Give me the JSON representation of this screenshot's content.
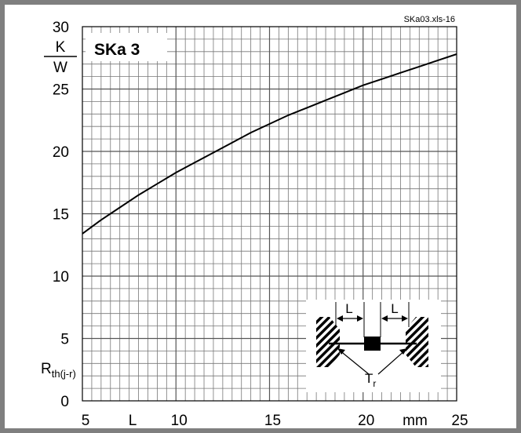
{
  "file_ref": "SKa03.xls-16",
  "chart_data": {
    "type": "line",
    "title": "SKa 3",
    "xlabel": "L",
    "xunit": "mm",
    "ylabel_main": "R",
    "ylabel_sub": "th(j-r)",
    "yunit_num": "K",
    "yunit_den": "W",
    "xlim": [
      5,
      25
    ],
    "ylim": [
      0,
      30
    ],
    "xticks": [
      "5",
      "10",
      "15",
      "20",
      "25"
    ],
    "yticks": [
      "0",
      "5",
      "10",
      "15",
      "20",
      "25",
      "30"
    ],
    "x_minor_step": 0.5,
    "y_minor_step": 1,
    "grid": true,
    "series": [
      {
        "x": [
          5,
          6,
          7,
          8,
          9,
          10,
          11,
          12,
          13,
          14,
          15,
          16,
          17,
          18,
          19,
          20,
          21,
          22,
          23,
          24,
          25
        ],
        "y": [
          13.4,
          14.5,
          15.5,
          16.5,
          17.4,
          18.3,
          19.1,
          19.9,
          20.7,
          21.5,
          22.2,
          22.9,
          23.5,
          24.1,
          24.7,
          25.3,
          25.8,
          26.3,
          26.8,
          27.3,
          27.8
        ]
      }
    ],
    "inset": {
      "dim_left": "L",
      "dim_right": "L",
      "temp_main": "T",
      "temp_sub": "r"
    }
  }
}
